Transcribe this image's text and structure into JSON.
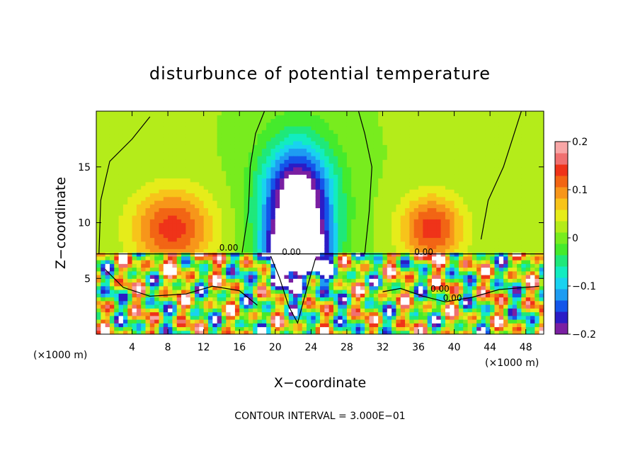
{
  "chart_data": {
    "type": "heatmap",
    "title": "disturbunce of potential temperature",
    "xlabel": "X−coordinate",
    "ylabel": "Z−coordinate",
    "x_unit_left": "(×1000 m)",
    "x_unit_right": "(×1000 m)",
    "footer": "CONTOUR INTERVAL = 3.000E−01",
    "xlim": [
      0,
      50
    ],
    "ylim": [
      0,
      20
    ],
    "x_ticks": [
      4,
      8,
      12,
      16,
      20,
      24,
      28,
      32,
      36,
      40,
      44,
      48
    ],
    "y_ticks": [
      5,
      10,
      15
    ],
    "colorbar": {
      "range": [
        -0.2,
        0.2
      ],
      "tick_values": [
        -0.2,
        -0.1,
        0,
        0.1,
        0.2
      ],
      "tick_labels": [
        "−0.2",
        "−0.1",
        "0",
        "0.1",
        "0.2"
      ],
      "colors": [
        "#7a1fa2",
        "#2b1cc6",
        "#1455ea",
        "#1e9cf2",
        "#19d2f0",
        "#12ecc0",
        "#1fe87a",
        "#45ea2c",
        "#78ec1e",
        "#b4ec1a",
        "#e6ec1a",
        "#f7c41a",
        "#f7961a",
        "#f26514",
        "#ef3319",
        "#f07070",
        "#f8a6a6"
      ]
    },
    "contour_labels": [
      {
        "text": "0.00",
        "x": 14.8,
        "y": 7.5
      },
      {
        "text": "0.00",
        "x": 21.8,
        "y": 7.1
      },
      {
        "text": "0.00",
        "x": 36.6,
        "y": 7.1
      },
      {
        "text": "0.00",
        "x": 38.4,
        "y": 3.8
      },
      {
        "text": "0.00",
        "x": 39.8,
        "y": 3.0
      }
    ],
    "features": [
      {
        "x": 8.5,
        "z": 9.5,
        "sx": 4.5,
        "sz": 3.5,
        "amp": 0.13
      },
      {
        "x": 37.5,
        "z": 9.5,
        "sx": 3.5,
        "sz": 3.0,
        "amp": 0.13
      },
      {
        "x": 22.5,
        "z": 11.5,
        "sx": 4.0,
        "sz": 5.5,
        "amp": -0.28
      },
      {
        "x": 22.5,
        "z": 7.0,
        "sx": 3.0,
        "sz": 2.5,
        "amp": -0.32
      }
    ]
  }
}
